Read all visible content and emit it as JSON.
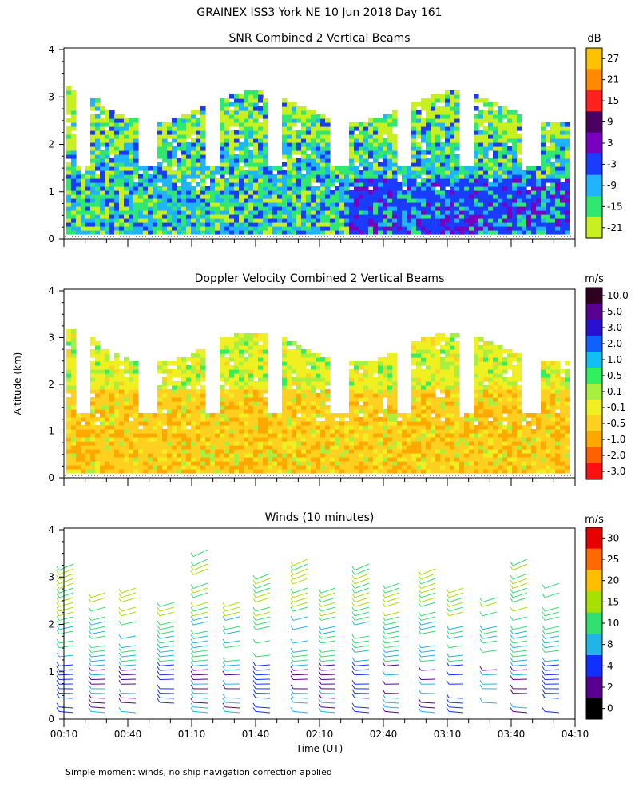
{
  "title": "GRAINEX ISS3 York NE  10 Jun 2018 Day 161",
  "footnote": "Simple moment winds, no ship navigation correction applied",
  "ylabel": "Altitude (km)",
  "xlabel": "Time (UT)",
  "x_ticks": [
    "00:10",
    "00:40",
    "01:10",
    "01:40",
    "02:10",
    "02:40",
    "03:10",
    "03:40",
    "04:10"
  ],
  "y_ticks": [
    "0",
    "1",
    "2",
    "3",
    "4"
  ],
  "chart_data": [
    {
      "type": "heatmap",
      "title": "SNR Combined 2 Vertical Beams",
      "colorbar_unit": "dB",
      "colorbar_labels": [
        "27",
        "21",
        "15",
        "9",
        "3",
        "-3",
        "-9",
        "-15",
        "-21"
      ],
      "colorbar_colors": [
        "#ffc200",
        "#ff8a00",
        "#ff2020",
        "#4a0060",
        "#7a00c0",
        "#1a3cff",
        "#20b4ff",
        "#30e870",
        "#c8f020"
      ],
      "xlim": [
        "00:10",
        "04:10"
      ],
      "ylim": [
        0,
        4
      ],
      "field": "snr"
    },
    {
      "type": "heatmap",
      "title": "Doppler Velocity Combined 2 Vertical Beams",
      "colorbar_unit": "m/s",
      "colorbar_labels": [
        "10.0",
        "5.0",
        "3.0",
        "2.0",
        "1.0",
        "0.5",
        "0.1",
        "-0.1",
        "-0.5",
        "-1.0",
        "-2.0",
        "-3.0"
      ],
      "colorbar_colors": [
        "#300020",
        "#5a0090",
        "#2a10d0",
        "#1060ff",
        "#10c0f0",
        "#30f060",
        "#a8f040",
        "#f0f020",
        "#ffd020",
        "#ffa800",
        "#ff6000",
        "#ff1010"
      ],
      "xlim": [
        "00:10",
        "04:10"
      ],
      "ylim": [
        0,
        4
      ],
      "field": "doppler"
    },
    {
      "type": "scatter",
      "title": "Winds (10 minutes)",
      "colorbar_unit": "m/s",
      "colorbar_labels": [
        "30",
        "25",
        "20",
        "15",
        "10",
        "8",
        "4",
        "2",
        "0"
      ],
      "colorbar_colors": [
        "#e80000",
        "#ff6a00",
        "#ffbe00",
        "#a8e000",
        "#30e070",
        "#20b4e8",
        "#1030ff",
        "#5a0090",
        "#000000"
      ],
      "xlim": [
        "00:10",
        "04:10"
      ],
      "ylim": [
        0,
        4
      ],
      "field": "winds"
    }
  ]
}
